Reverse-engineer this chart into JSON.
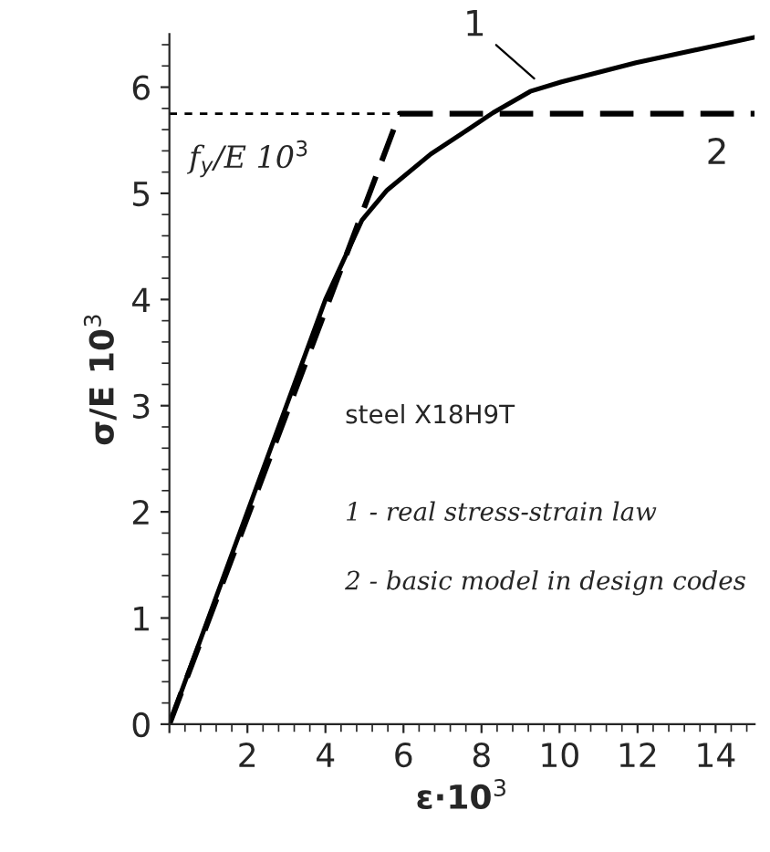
{
  "chart_data": {
    "type": "line",
    "xlabel": "ε·10$^{3}$",
    "ylabel": "σ/E 10$^{3}$",
    "xlim": [
      0,
      15
    ],
    "ylim": [
      0,
      6.5
    ],
    "xticks": [
      {
        "value": 0,
        "label": null
      },
      2,
      4,
      6,
      8,
      10,
      12,
      14
    ],
    "yticks": [
      0,
      1,
      2,
      3,
      4,
      5,
      6
    ],
    "grid": false,
    "legend": false,
    "series": [
      {
        "name": "1",
        "color": "#000000",
        "line_style": "solid",
        "x": [
          0,
          2,
          4,
          4.94,
          5.58,
          6.7,
          7.65,
          8.3,
          9.25,
          10.05,
          11.96,
          15
        ],
        "values": [
          0,
          2,
          4,
          4.75,
          5.03,
          5.37,
          5.6,
          5.76,
          5.96,
          6.05,
          6.23,
          6.47
        ]
      },
      {
        "name": "2",
        "color": "#000000",
        "line_style": "dashed",
        "x": [
          0,
          5.9,
          15
        ],
        "values": [
          0,
          5.75,
          5.75
        ]
      }
    ],
    "ref_lines": [
      {
        "axis": "y",
        "value": 5.75,
        "label": "f$_{y}$/E 10$^{3}$",
        "line_style": "dashed",
        "color": "#000000"
      }
    ],
    "annotations": [
      "steel X18H9T",
      "1 - real stress-strain law",
      "2 - basic model in design codes"
    ]
  }
}
